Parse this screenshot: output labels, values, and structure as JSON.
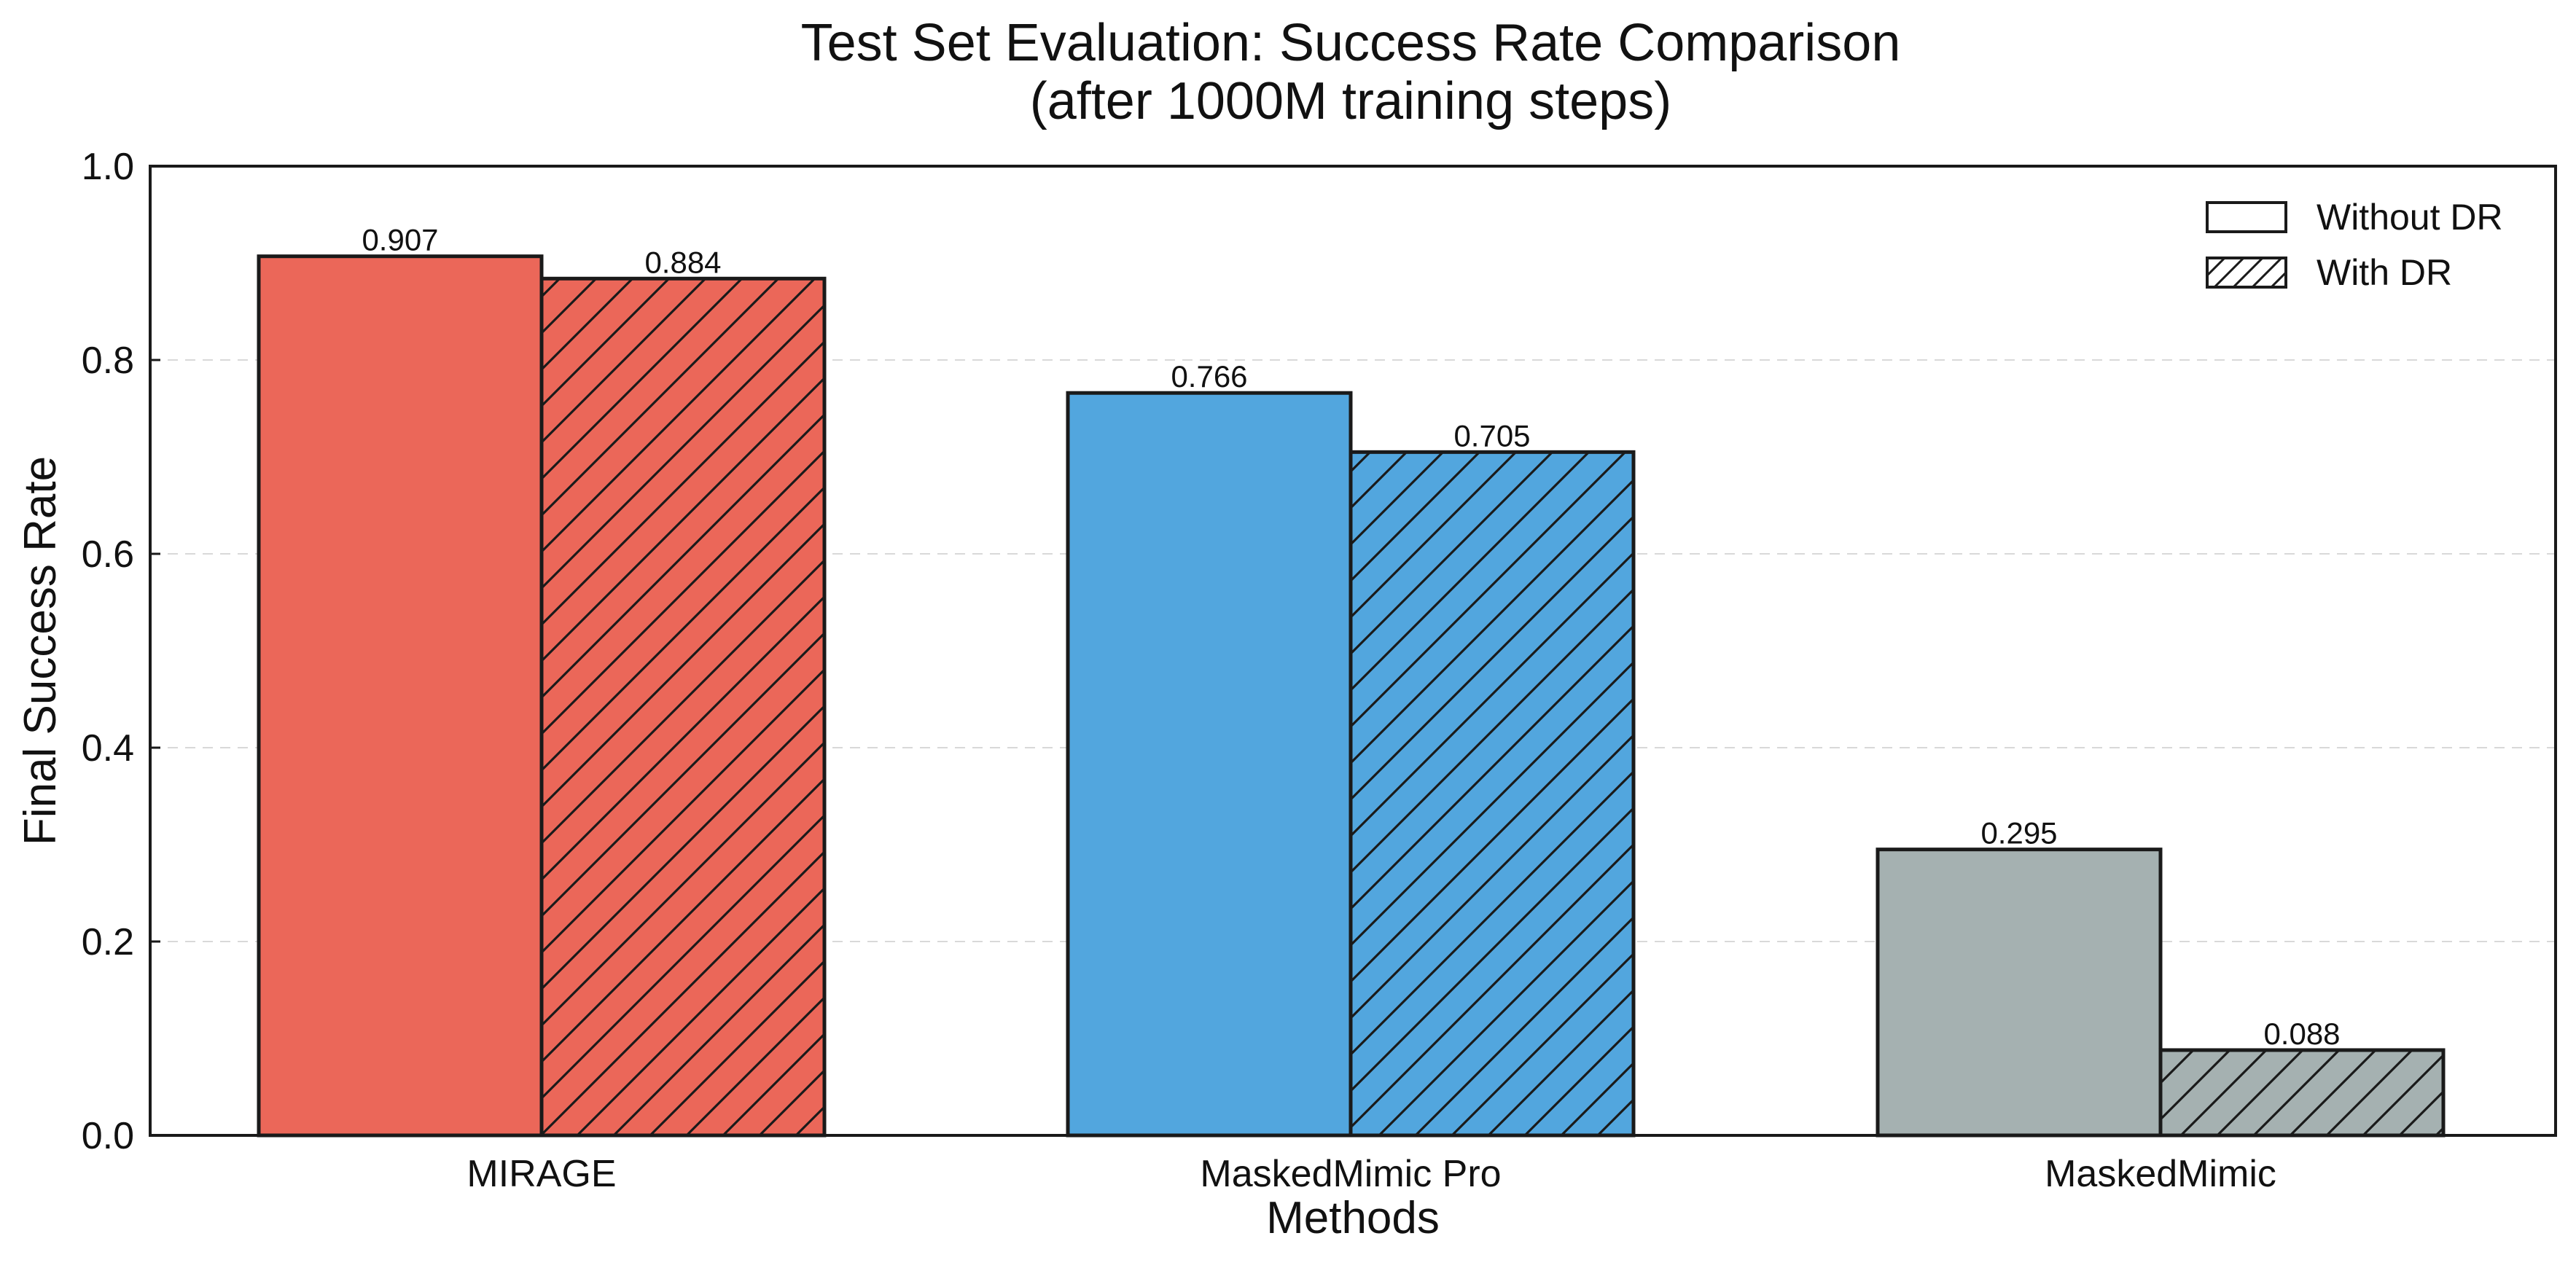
{
  "chart_data": {
    "type": "bar",
    "title": "Test Set Evaluation: Success Rate Comparison",
    "subtitle": "(after 1000M training steps)",
    "xlabel": "Methods",
    "ylabel": "Final Success Rate",
    "categories": [
      "MIRAGE",
      "MaskedMimic Pro",
      "MaskedMimic"
    ],
    "category_colors": [
      "#EB6759",
      "#52A6DE",
      "#A5B1B1"
    ],
    "series": [
      {
        "name": "Without DR",
        "hatch": "none",
        "values": [
          0.907,
          0.766,
          0.295
        ]
      },
      {
        "name": "With DR",
        "hatch": "diagonal",
        "values": [
          0.884,
          0.705,
          0.088
        ]
      }
    ],
    "value_labels": [
      [
        "0.907",
        "0.766",
        "0.295"
      ],
      [
        "0.884",
        "0.705",
        "0.088"
      ]
    ],
    "ylim": [
      0,
      1.0
    ],
    "yticks": [
      0.0,
      0.2,
      0.4,
      0.6,
      0.8,
      1.0
    ],
    "ytick_labels": [
      "0.0",
      "0.2",
      "0.4",
      "0.6",
      "0.8",
      "1.0"
    ],
    "grid": "y-dashed",
    "legend_position": "top-right",
    "edge_color": "#1a1a1a"
  }
}
